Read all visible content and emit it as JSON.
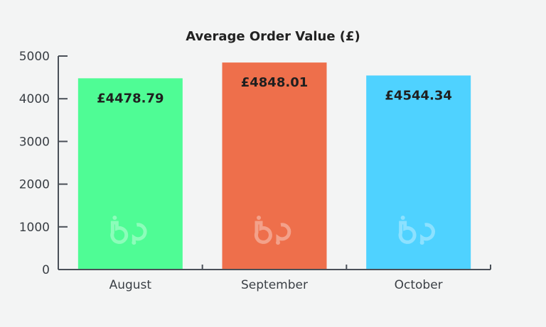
{
  "chart_data": {
    "type": "bar",
    "title": "Average Order Value (£)",
    "xlabel": "",
    "ylabel": "",
    "categories": [
      "August",
      "September",
      "October"
    ],
    "values": [
      4478.79,
      4848.01,
      4544.34
    ],
    "data_labels": [
      "£4478.79",
      "£4848.01",
      "£4544.34"
    ],
    "colors": [
      "#4ffc95",
      "#ee6f4b",
      "#4fd2ff"
    ],
    "ylim": [
      0,
      5000
    ],
    "yticks": [
      0,
      1000,
      2000,
      3000,
      4000,
      5000
    ],
    "grid": false,
    "legend": "none",
    "watermark_text": "bp"
  }
}
